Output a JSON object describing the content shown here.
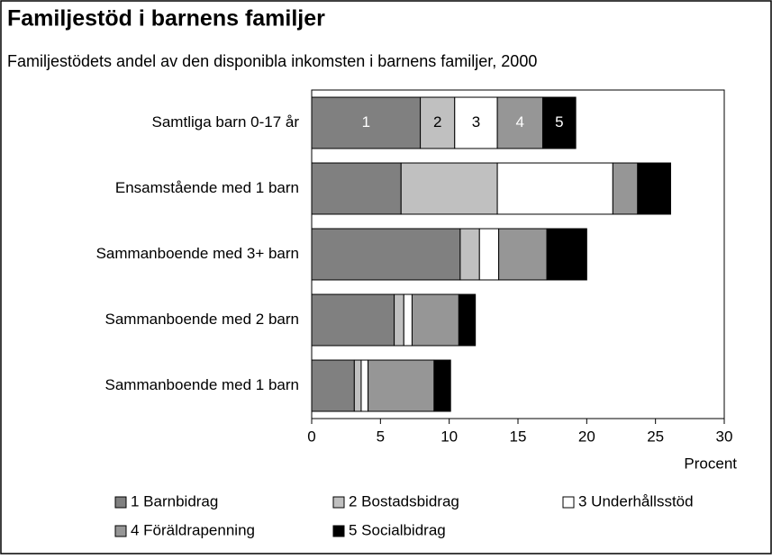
{
  "chart_data": {
    "type": "stacked-barh",
    "title": "Familjestöd i barnens familjer",
    "subtitle": "Familjestödets andel av den disponibla inkomsten i barnens familjer, 2000",
    "x_label": "Procent",
    "categories": [
      "Samtliga barn 0-17 år",
      "Ensamstående med 1 barn",
      "Sammanboende med 3+ barn",
      "Sammanboende med 2 barn",
      "Sammanboende med 1 barn"
    ],
    "series": [
      {
        "name": "1 Barnbidrag",
        "segment_label": "1",
        "color": "#808080",
        "label_color": "#ffffff",
        "values": [
          7.9,
          6.5,
          10.8,
          6.0,
          3.1
        ]
      },
      {
        "name": "2 Bostadsbidrag",
        "segment_label": "2",
        "color": "#c0c0c0",
        "label_color": "#000000",
        "values": [
          2.5,
          7.0,
          1.4,
          0.7,
          0.5
        ]
      },
      {
        "name": "3 Underhållsstöd",
        "segment_label": "3",
        "color": "#ffffff",
        "label_color": "#000000",
        "values": [
          3.1,
          8.4,
          1.4,
          0.6,
          0.5
        ]
      },
      {
        "name": "4 Föräldrapenning",
        "segment_label": "4",
        "color": "#969696",
        "label_color": "#ffffff",
        "values": [
          3.3,
          1.8,
          3.5,
          3.4,
          4.8
        ]
      },
      {
        "name": "5 Socialbidrag",
        "segment_label": "5",
        "color": "#000000",
        "label_color": "#ffffff",
        "values": [
          2.4,
          2.4,
          2.9,
          1.2,
          1.2
        ]
      }
    ],
    "xlim": [
      0,
      30
    ],
    "xticks": [
      0,
      5,
      10,
      15,
      20,
      25,
      30
    ]
  }
}
